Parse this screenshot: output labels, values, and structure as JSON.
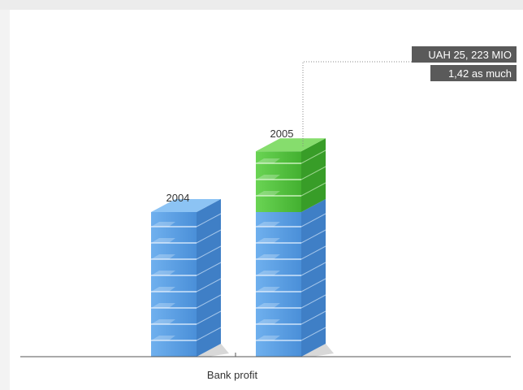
{
  "chart_data": {
    "type": "bar",
    "xlabel": "Bank profit",
    "categories": [
      "2004",
      "2005"
    ],
    "series": [
      {
        "values": [
          1,
          1
        ]
      },
      {
        "values": [
          0,
          0.42
        ]
      }
    ],
    "annotations": [
      "UAH 25, 223 MIO",
      "1,42 as much"
    ],
    "colors": {
      "base": "#5b9be0",
      "growth": "#58c443",
      "label_bg": "#5a5a5a"
    },
    "grid": false
  }
}
